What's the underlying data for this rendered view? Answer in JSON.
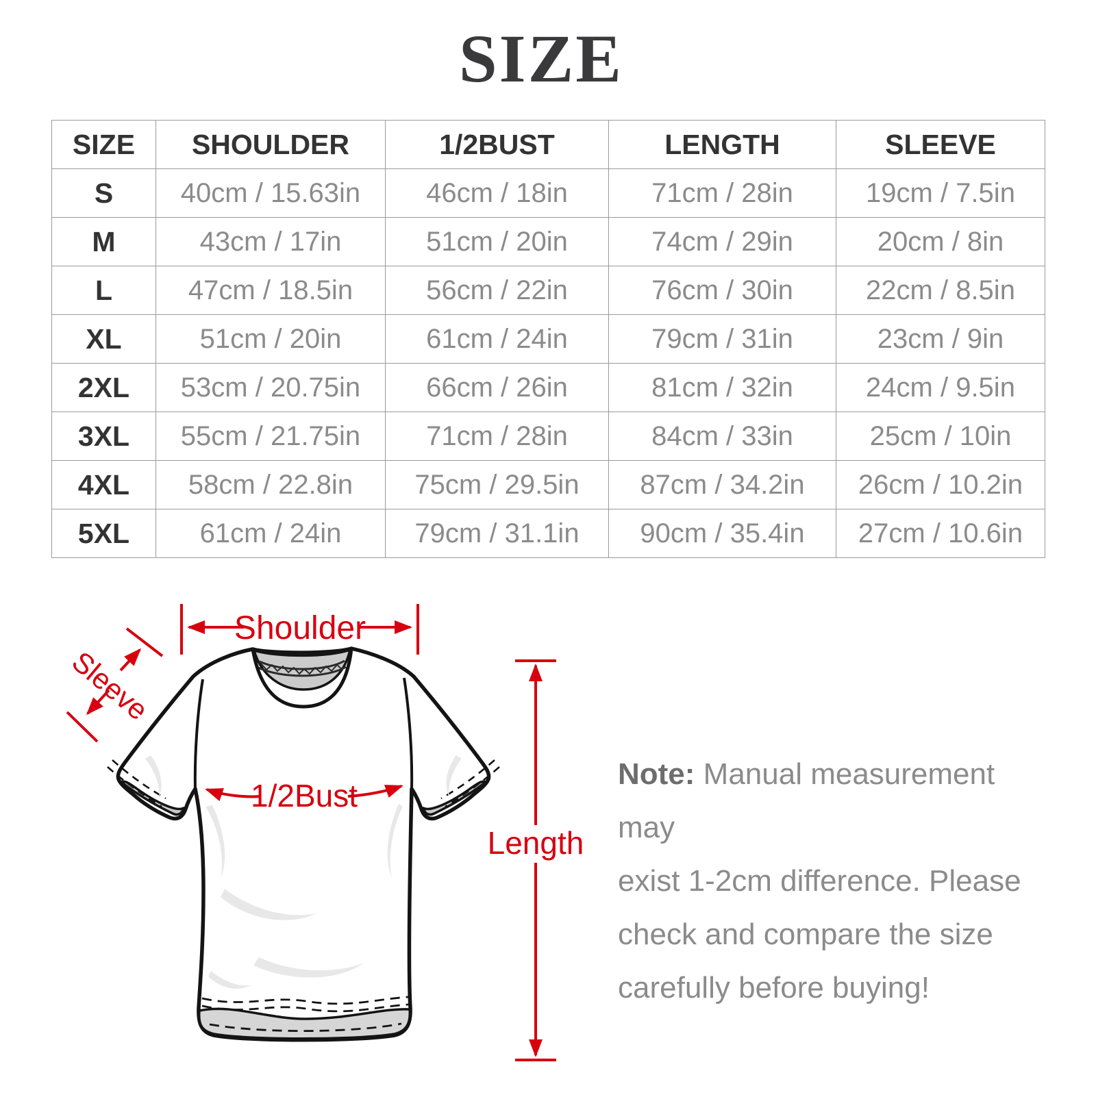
{
  "title": "SIZE",
  "accent_color": "#d7000f",
  "table": {
    "columns": [
      "SIZE",
      "SHOULDER",
      "1/2BUST",
      "LENGTH",
      "SLEEVE"
    ],
    "rows": [
      {
        "size": "S",
        "cells": [
          "40cm / 15.63in",
          "46cm / 18in",
          "71cm / 28in",
          "19cm / 7.5in"
        ]
      },
      {
        "size": "M",
        "cells": [
          "43cm / 17in",
          "51cm / 20in",
          "74cm / 29in",
          "20cm / 8in"
        ]
      },
      {
        "size": "L",
        "cells": [
          "47cm / 18.5in",
          "56cm / 22in",
          "76cm / 30in",
          "22cm / 8.5in"
        ]
      },
      {
        "size": "XL",
        "cells": [
          "51cm / 20in",
          "61cm / 24in",
          "79cm / 31in",
          "23cm / 9in"
        ]
      },
      {
        "size": "2XL",
        "cells": [
          "53cm / 20.75in",
          "66cm / 26in",
          "81cm / 32in",
          "24cm / 9.5in"
        ]
      },
      {
        "size": "3XL",
        "cells": [
          "55cm / 21.75in",
          "71cm / 28in",
          "84cm / 33in",
          "25cm / 10in"
        ]
      },
      {
        "size": "4XL",
        "cells": [
          "58cm / 22.8in",
          "75cm / 29.5in",
          "87cm / 34.2in",
          "26cm / 10.2in"
        ]
      },
      {
        "size": "5XL",
        "cells": [
          "61cm / 24in",
          "79cm / 31.1in",
          "90cm / 35.4in",
          "27cm / 10.6in"
        ]
      }
    ]
  },
  "diagram": {
    "labels": {
      "shoulder": "Shoulder",
      "sleeve": "Sleeve",
      "half_bust": "1/2Bust",
      "length": "Length"
    }
  },
  "note": {
    "label": "Note:",
    "lines": [
      "Manual measurement may",
      "exist 1-2cm difference. Please",
      "check and compare the size",
      "carefully before buying!"
    ]
  }
}
